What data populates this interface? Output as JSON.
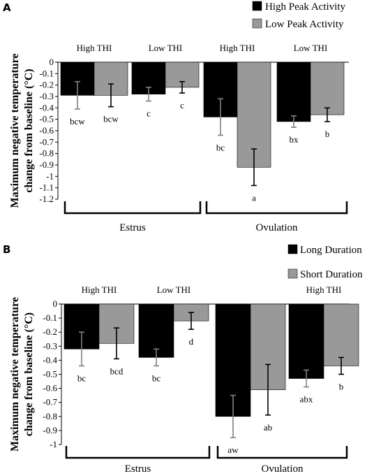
{
  "chart_data": [
    {
      "panel": "A",
      "type": "bar",
      "ylabel": "Maximum negative temperature change from baseline (°C)",
      "ylim": [
        -1.2,
        0
      ],
      "yticks": [
        0,
        -0.1,
        -0.2,
        -0.3,
        -0.4,
        -0.5,
        -0.6,
        -0.7,
        -0.8,
        -0.9,
        -1,
        -1.1,
        -1.2
      ],
      "ytick_labels": [
        "0",
        "-0.1",
        "-0.2",
        "-0.3",
        "-0.4",
        "-0.5",
        "-0.6",
        "-0.7",
        "-0.8",
        "-0.9",
        "-1",
        "-1.1",
        "-1.2"
      ],
      "categories": [
        "High THI",
        "Low THI",
        "High THI",
        "Low THI"
      ],
      "phases": [
        {
          "name": "Estrus",
          "groups": [
            0,
            1
          ]
        },
        {
          "name": "Ovulation",
          "groups": [
            2,
            3
          ]
        }
      ],
      "legend": {
        "placement": "top-right"
      },
      "series": [
        {
          "name": "High Peak Activity",
          "color": "#000000",
          "values": [
            -0.29,
            -0.28,
            -0.48,
            -0.52
          ],
          "errors": [
            0.12,
            0.06,
            0.16,
            0.05
          ],
          "labels": [
            "bcw",
            "c",
            "bc",
            "bx"
          ]
        },
        {
          "name": "Low Peak Activity",
          "color": "#999999",
          "values": [
            -0.29,
            -0.22,
            -0.92,
            -0.46
          ],
          "errors": [
            0.1,
            0.05,
            0.16,
            0.06
          ],
          "labels": [
            "bcw",
            "c",
            "a",
            "b"
          ]
        }
      ]
    },
    {
      "panel": "B",
      "type": "bar",
      "ylabel": "Maximum negative temperature change from baseline (°C)",
      "ylim": [
        -1,
        0
      ],
      "yticks": [
        0,
        -0.1,
        -0.2,
        -0.3,
        -0.4,
        -0.5,
        -0.6,
        -0.7,
        -0.8,
        -0.9,
        -1
      ],
      "ytick_labels": [
        "0",
        "-0.1",
        "-0.2",
        "-0.3",
        "-0.4",
        "-0.5",
        "-0.6",
        "-0.7",
        "-0.8",
        "-0.9",
        "-1"
      ],
      "categories": [
        "High THI",
        "Low THI",
        "",
        "High THI"
      ],
      "phases": [
        {
          "name": "Estrus",
          "groups": [
            0,
            1
          ]
        },
        {
          "name": "Ovulation",
          "groups": [
            2,
            3
          ]
        }
      ],
      "legend": {
        "placement": "top-right"
      },
      "series": [
        {
          "name": "Long Duration",
          "color": "#000000",
          "values": [
            -0.32,
            -0.38,
            -0.8,
            -0.53
          ],
          "errors": [
            0.12,
            0.06,
            0.15,
            0.06
          ],
          "labels": [
            "bc",
            "bc",
            "aw",
            "abx"
          ]
        },
        {
          "name": "Short Duration",
          "color": "#999999",
          "values": [
            -0.28,
            -0.12,
            -0.61,
            -0.44
          ],
          "errors": [
            0.11,
            0.06,
            0.18,
            0.06
          ],
          "labels": [
            "bcd",
            "d",
            "ab",
            "b"
          ]
        }
      ]
    }
  ]
}
